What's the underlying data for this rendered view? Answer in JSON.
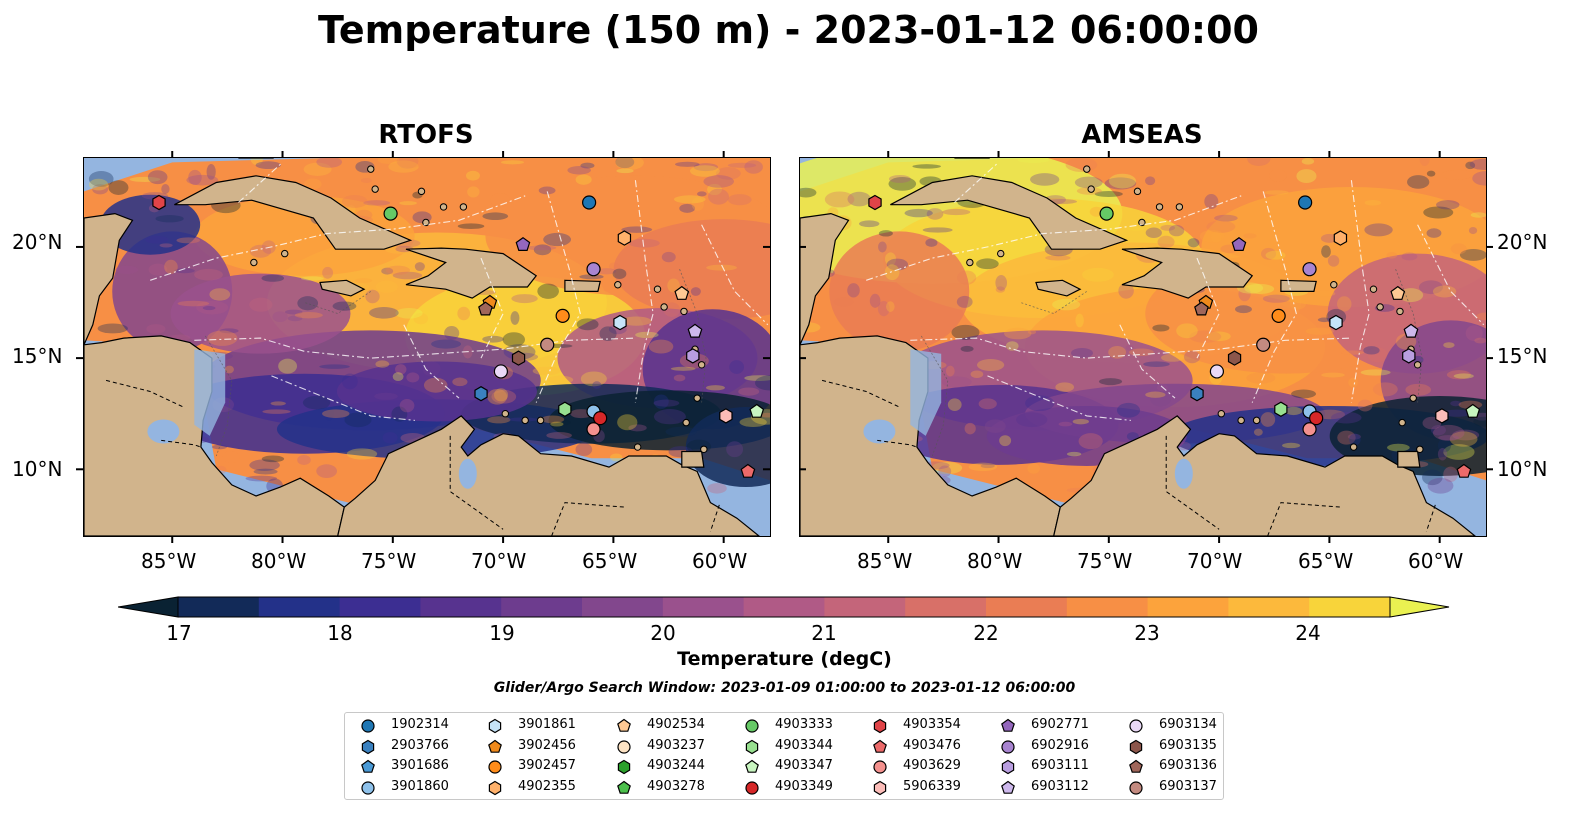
{
  "title": "Temperature (150 m) - 2023-01-12 06:00:00",
  "panels": [
    {
      "name": "RTOFS",
      "variant": "rtofs"
    },
    {
      "name": "AMSEAS",
      "variant": "amseas"
    }
  ],
  "axes": {
    "lon_ticks": [
      "85°W",
      "80°W",
      "75°W",
      "70°W",
      "65°W",
      "60°W"
    ],
    "lat_ticks": [
      "20°N",
      "15°N",
      "10°N"
    ]
  },
  "colorbar": {
    "label": "Temperature (degC)",
    "ticks": [
      "17",
      "18",
      "19",
      "20",
      "21",
      "22",
      "23",
      "24"
    ],
    "range": [
      16.75,
      24.5
    ],
    "colors": [
      "#0a2233",
      "#122a58",
      "#233189",
      "#3c2e92",
      "#57338f",
      "#6d3c8e",
      "#82478d",
      "#9a518d",
      "#b05a86",
      "#c4657a",
      "#d87068",
      "#ea7d54",
      "#f78f45",
      "#fca33c",
      "#fcb93c",
      "#f8d43a",
      "#eaf151"
    ]
  },
  "search_window": "Glider/Argo Search Window: 2023-01-09 01:00:00 to 2023-01-12 06:00:00",
  "legend": [
    {
      "id": "1902314",
      "marker": "circle",
      "color": "#1f77b4"
    },
    {
      "id": "2903766",
      "marker": "hexagon",
      "color": "#3a81c0"
    },
    {
      "id": "3901686",
      "marker": "pentagon",
      "color": "#4a9ad6"
    },
    {
      "id": "3901860",
      "marker": "circle",
      "color": "#8ec1ea"
    },
    {
      "id": "3901861",
      "marker": "hexagon",
      "color": "#c6e4f8"
    },
    {
      "id": "3902456",
      "marker": "pentagon",
      "color": "#f08a1c"
    },
    {
      "id": "3902457",
      "marker": "circle",
      "color": "#ff8c1a"
    },
    {
      "id": "4902355",
      "marker": "hexagon",
      "color": "#ffb16b"
    },
    {
      "id": "4902534",
      "marker": "pentagon",
      "color": "#ffc994"
    },
    {
      "id": "4903237",
      "marker": "circle",
      "color": "#fde3c4"
    },
    {
      "id": "4903244",
      "marker": "hexagon",
      "color": "#2ca02c"
    },
    {
      "id": "4903278",
      "marker": "pentagon",
      "color": "#4cc04c"
    },
    {
      "id": "4903333",
      "marker": "circle",
      "color": "#66c966"
    },
    {
      "id": "4903344",
      "marker": "hexagon",
      "color": "#98e090"
    },
    {
      "id": "4903347",
      "marker": "pentagon",
      "color": "#c8f5c0"
    },
    {
      "id": "4903349",
      "marker": "circle",
      "color": "#d62728"
    },
    {
      "id": "4903354",
      "marker": "hexagon",
      "color": "#e04448"
    },
    {
      "id": "4903476",
      "marker": "pentagon",
      "color": "#ec6a6a"
    },
    {
      "id": "4903629",
      "marker": "circle",
      "color": "#f4918e"
    },
    {
      "id": "5906339",
      "marker": "hexagon",
      "color": "#fbbcb8"
    },
    {
      "id": "6902771",
      "marker": "pentagon",
      "color": "#9467bd"
    },
    {
      "id": "6902916",
      "marker": "circle",
      "color": "#a884d0"
    },
    {
      "id": "6903111",
      "marker": "hexagon",
      "color": "#b99ee0"
    },
    {
      "id": "6903112",
      "marker": "pentagon",
      "color": "#cdb8ec"
    },
    {
      "id": "6903134",
      "marker": "circle",
      "color": "#ead9f6"
    },
    {
      "id": "6903135",
      "marker": "hexagon",
      "color": "#8c564b"
    },
    {
      "id": "6903136",
      "marker": "pentagon",
      "color": "#a0665a"
    },
    {
      "id": "6903137",
      "marker": "circle",
      "color": "#c38a80"
    }
  ],
  "observations": [
    {
      "id": "1902314",
      "lon": -66.1,
      "lat": 22.0
    },
    {
      "id": "4903354",
      "lon": -85.6,
      "lat": 22.0
    },
    {
      "id": "4903333",
      "lon": -75.1,
      "lat": 21.5
    },
    {
      "id": "6902771",
      "lon": -69.1,
      "lat": 20.1
    },
    {
      "id": "4902355",
      "lon": -64.5,
      "lat": 20.4
    },
    {
      "id": "6902916",
      "lon": -65.9,
      "lat": 19.0
    },
    {
      "id": "4902534",
      "lon": -61.9,
      "lat": 17.9
    },
    {
      "id": "3902456",
      "lon": -70.6,
      "lat": 17.5
    },
    {
      "id": "6903136",
      "lon": -70.8,
      "lat": 17.2
    },
    {
      "id": "3902457",
      "lon": -67.3,
      "lat": 16.9
    },
    {
      "id": "3901861",
      "lon": -64.7,
      "lat": 16.6
    },
    {
      "id": "6903112",
      "lon": -61.3,
      "lat": 16.2
    },
    {
      "id": "6903137",
      "lon": -68.0,
      "lat": 15.6
    },
    {
      "id": "6903111",
      "lon": -61.4,
      "lat": 15.1
    },
    {
      "id": "6903135",
      "lon": -69.3,
      "lat": 15.0
    },
    {
      "id": "6903134",
      "lon": -70.1,
      "lat": 14.4
    },
    {
      "id": "2903766",
      "lon": -71.0,
      "lat": 13.4
    },
    {
      "id": "4903344",
      "lon": -67.2,
      "lat": 12.7
    },
    {
      "id": "3901860",
      "lon": -65.9,
      "lat": 12.6
    },
    {
      "id": "4903347",
      "lon": -58.5,
      "lat": 12.6
    },
    {
      "id": "5906339",
      "lon": -59.9,
      "lat": 12.4
    },
    {
      "id": "4903349",
      "lon": -65.6,
      "lat": 12.3
    },
    {
      "id": "4903629",
      "lon": -65.9,
      "lat": 11.8
    },
    {
      "id": "4903476",
      "lon": -58.9,
      "lat": 9.9
    }
  ]
}
